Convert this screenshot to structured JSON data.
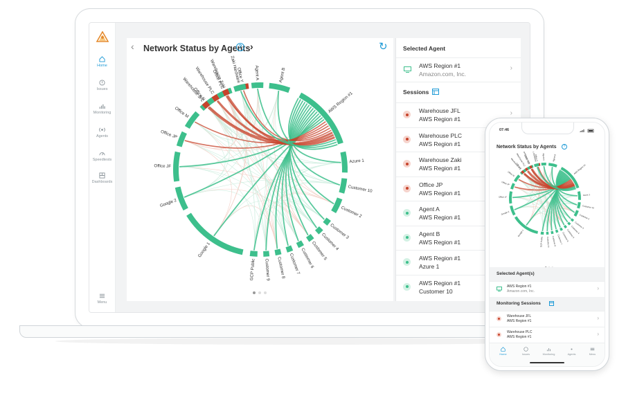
{
  "laptop": {
    "sidebar": {
      "items": [
        {
          "label": "Home",
          "icon": "home-icon",
          "active": true
        },
        {
          "label": "Issues",
          "icon": "alert-icon"
        },
        {
          "label": "Monitoring",
          "icon": "bar-chart-icon"
        },
        {
          "label": "Agents",
          "icon": "agents-icon"
        },
        {
          "label": "Speedtests",
          "icon": "speedometer-icon"
        },
        {
          "label": "Dashboards",
          "icon": "dashboard-icon"
        }
      ],
      "menu_label": "Menu"
    },
    "chart_title": "Network Status by Agents",
    "help": "?",
    "nav_prev": "‹",
    "nav_next": "›",
    "refresh": "↻",
    "right": {
      "selected_agent_header": "Selected Agent",
      "selected_agent": {
        "name": "AWS Region #1",
        "sub": "Amazon.com, Inc."
      },
      "sessions_header": "Sessions",
      "sessions": [
        {
          "name": "Warehouse JFL",
          "sub": "AWS Region #1",
          "status": "red"
        },
        {
          "name": "Warehouse PLC",
          "sub": "AWS Region #1",
          "status": "red"
        },
        {
          "name": "Warehouse Zaki",
          "sub": "AWS Region #1",
          "status": "red"
        },
        {
          "name": "Office JP",
          "sub": "AWS Region #1",
          "status": "red"
        },
        {
          "name": "Agent A",
          "sub": "AWS Region #1",
          "status": "green"
        },
        {
          "name": "Agent B",
          "sub": "AWS Region #1",
          "status": "green"
        },
        {
          "name": "AWS Region #1",
          "sub": "Azure 1",
          "status": "green"
        },
        {
          "name": "AWS Region #1",
          "sub": "Customer 10",
          "status": "green"
        }
      ]
    }
  },
  "chord_labels": [
    "AWS Region #1",
    "Azure 1",
    "Customer 10",
    "Customer 2",
    "Customer 3",
    "Customer 4",
    "Customer 5",
    "Customer 6",
    "Customer 7",
    "Customer 8",
    "Customer 9",
    "GCP Public",
    "Google 1",
    "Google 2",
    "Office JF",
    "Office JP",
    "Office M",
    "Office N",
    "Office PLC",
    "Office Y",
    "Warehouse JFL",
    "Warehouse PLC",
    "Warehouse Zaki",
    "Zaki Hardware",
    "Agent A",
    "Agent B"
  ],
  "phone": {
    "time": "07:46",
    "title": "Network Status by Agents",
    "help": "?",
    "selected_header": "Selected Agent(s)",
    "selected": {
      "name": "AWS Region #1",
      "sub": "Amazon.com, Inc."
    },
    "sessions_header": "Monitoring Sessions",
    "sessions": [
      {
        "name": "Warehouse JFL",
        "sub": "AWS Region #1"
      },
      {
        "name": "Warehouse PLC",
        "sub": "AWS Region #1"
      }
    ],
    "tabs": [
      "Home",
      "Issues",
      "Monitoring",
      "Agents",
      "Menu"
    ]
  },
  "colors": {
    "green": "#3dbf8c",
    "red": "#c7432b",
    "blue": "#1e9ad6",
    "grey": "#8a9399"
  }
}
